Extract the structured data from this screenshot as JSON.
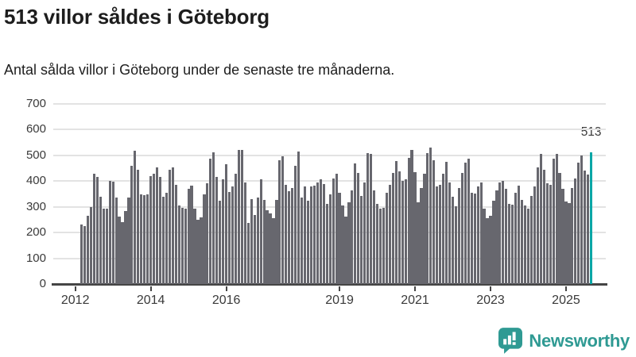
{
  "header": {
    "title": "513 villor såldes i Göteborg",
    "subtitle": "Antal sålda villor i Göteborg under de senaste tre månaderna."
  },
  "chart_data": {
    "type": "bar",
    "title": "513 villor såldes i Göteborg",
    "subtitle": "Antal sålda villor i Göteborg under de senaste tre månaderna.",
    "xlabel": "",
    "ylabel": "",
    "ylim": [
      0,
      700
    ],
    "y_ticks": [
      0,
      100,
      200,
      300,
      400,
      500,
      600,
      700
    ],
    "x_tick_years": [
      "2012",
      "2014",
      "2016",
      "2019",
      "2021",
      "2023",
      "2025"
    ],
    "x_start": "2012-03",
    "x_end": "2025-09",
    "frequency": "monthly",
    "grid": "horizontal",
    "legend_position": "none",
    "annotation": "513",
    "highlight_index": 162,
    "highlight_value": 513,
    "bar_color": "#67676e",
    "highlight_color": "#0aa6a6",
    "values": [
      230,
      226,
      266,
      300,
      428,
      415,
      338,
      292,
      294,
      400,
      398,
      335,
      262,
      240,
      285,
      335,
      460,
      518,
      443,
      348,
      346,
      350,
      420,
      430,
      452,
      415,
      340,
      354,
      443,
      454,
      384,
      304,
      297,
      294,
      369,
      382,
      294,
      251,
      259,
      348,
      392,
      487,
      513,
      415,
      325,
      407,
      465,
      359,
      379,
      428,
      520,
      522,
      395,
      238,
      331,
      269,
      335,
      407,
      328,
      287,
      273,
      256,
      328,
      482,
      495,
      385,
      360,
      374,
      458,
      516,
      335,
      379,
      323,
      379,
      382,
      395,
      407,
      390,
      310,
      348,
      410,
      428,
      354,
      304,
      263,
      318,
      364,
      469,
      431,
      343,
      395,
      510,
      506,
      364,
      310,
      292,
      297,
      354,
      384,
      431,
      477,
      438,
      400,
      407,
      489,
      520,
      436,
      318,
      372,
      428,
      510,
      530,
      482,
      379,
      384,
      428,
      475,
      395,
      338,
      302,
      374,
      431,
      472,
      487,
      354,
      352,
      379,
      395,
      294,
      256,
      266,
      325,
      364,
      395,
      400,
      369,
      312,
      307,
      354,
      382,
      328,
      304,
      294,
      343,
      379,
      454,
      506,
      444,
      392,
      387,
      487,
      505,
      433,
      369,
      320,
      313,
      374,
      410,
      472,
      501,
      441,
      426,
      513
    ]
  },
  "footer": {
    "brand": "Newsworthy"
  },
  "colors": {
    "background": "#ffffff",
    "title_text": "#1d1d1d",
    "axis_text": "#3a3a3a",
    "gridline": "#e3e3e3",
    "axis_line": "#454545",
    "bar_gray": "#67676e",
    "bar_teal": "#0aa6a6",
    "logo_teal": "#2f9a93"
  }
}
